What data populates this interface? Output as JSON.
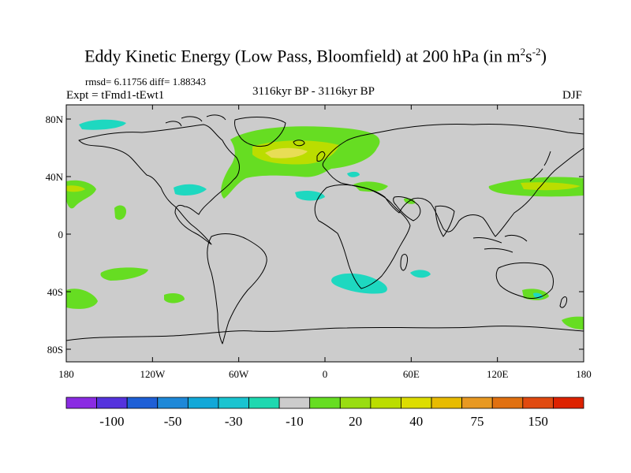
{
  "title": {
    "text": "Eddy Kinetic Energy (Low Pass, Bloomfield) at 200 hPa (in m",
    "sup1": "2",
    "mid": "s",
    "sup2": "-2",
    "end": ")"
  },
  "stats": "rmsd= 6.11756 diff= 1.88343",
  "experiment": "Expt = tFmd1-tEwt1",
  "period": "3116kyr BP - 3116kyr BP",
  "season": "DJF",
  "axes": {
    "lat_labels": [
      "80N",
      "40N",
      "0",
      "40S",
      "80S"
    ],
    "lat_values": [
      80,
      40,
      0,
      -40,
      -80
    ],
    "lon_labels": [
      "180",
      "120W",
      "60W",
      "0",
      "60E",
      "120E",
      "180"
    ],
    "lon_values": [
      -180,
      -120,
      -60,
      0,
      60,
      120,
      180
    ]
  },
  "colorbar": {
    "colors": [
      "#8a2be2",
      "#5533dd",
      "#1e5fd6",
      "#1e88d8",
      "#12a8d8",
      "#1ac4d0",
      "#1ed8b0",
      "#cccccc",
      "#66dd22",
      "#99dd11",
      "#bbdd00",
      "#dddd00",
      "#e8bb00",
      "#e89922",
      "#e07010",
      "#e04a10",
      "#dd2200"
    ],
    "labels": [
      "-100",
      "-50",
      "-30",
      "-10",
      "20",
      "40",
      "75",
      "150"
    ]
  },
  "map_data": {
    "background_color": "#cccccc",
    "positive_color": "#66dd22",
    "strong_color": "#bbdd00",
    "peak_color": "#e8dd55",
    "negative_color": "#1ed8c0"
  }
}
